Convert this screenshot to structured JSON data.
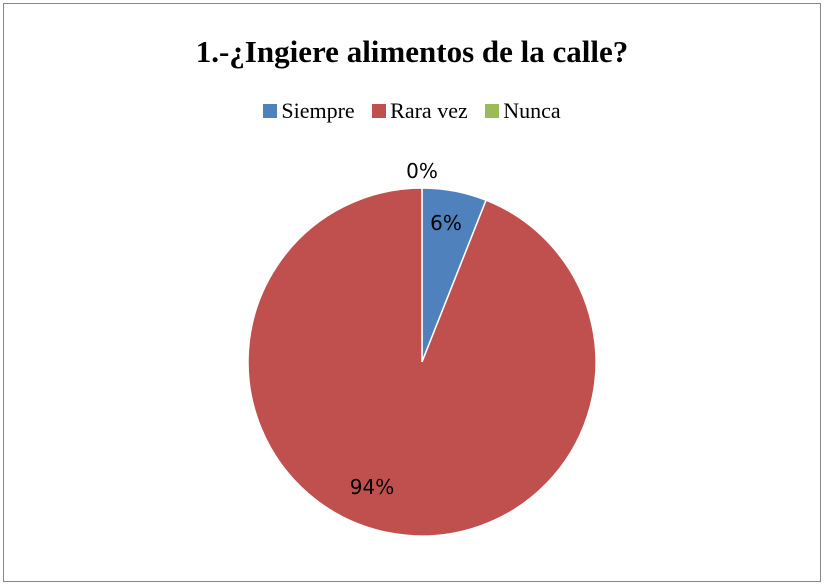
{
  "chart_data": {
    "type": "pie",
    "title": "1.-¿Ingiere alimentos de la calle?",
    "legend_position": "top",
    "categories": [
      "Siempre",
      "Rara vez",
      "Nunca"
    ],
    "values": [
      6,
      94,
      0
    ],
    "labels": [
      "6%",
      "94%",
      "0%"
    ],
    "colors": [
      "#4F81BD",
      "#C0504D",
      "#9BBB59"
    ]
  }
}
